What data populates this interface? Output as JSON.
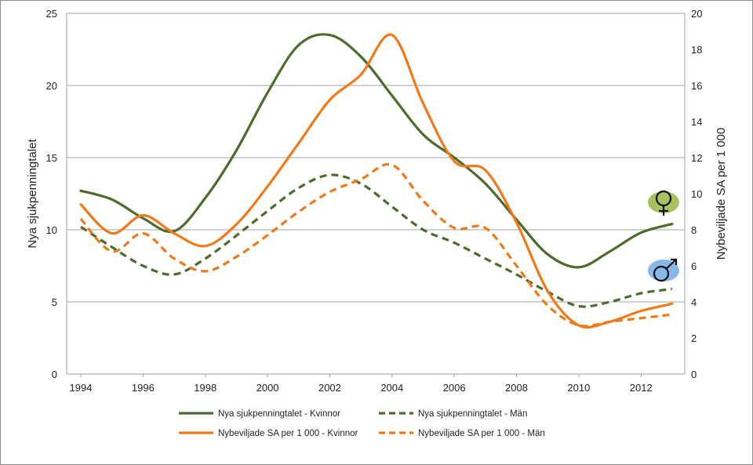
{
  "chart_data": {
    "type": "line",
    "x": [
      1994,
      1995,
      1996,
      1997,
      1998,
      1999,
      2000,
      2001,
      2002,
      2003,
      2004,
      2005,
      2006,
      2007,
      2008,
      2009,
      2010,
      2011,
      2012,
      2013
    ],
    "xticks": [
      "1994",
      "1996",
      "1998",
      "2000",
      "2002",
      "2004",
      "2006",
      "2008",
      "2010",
      "2012"
    ],
    "ylabel_left": "Nya sjukpenningtalet",
    "ylabel_right": "Nybeviljade  SA per 1 000",
    "ylim_left": [
      0,
      25
    ],
    "ylim_right": [
      0,
      20
    ],
    "yticks_left": [
      "0",
      "5",
      "10",
      "15",
      "20",
      "25"
    ],
    "yticks_right": [
      "0",
      "2",
      "4",
      "6",
      "8",
      "10",
      "12",
      "14",
      "16",
      "18",
      "20"
    ],
    "grid": true,
    "legend_position": "bottom",
    "series": [
      {
        "name": "Nya sjukpenningtalet - Kvinnor",
        "axis": "left",
        "color": "#4e6b2c",
        "dashed": false,
        "values": [
          12.7,
          12.1,
          10.8,
          9.9,
          12.2,
          15.5,
          19.5,
          22.8,
          23.5,
          22.0,
          19.3,
          16.6,
          15.0,
          13.2,
          10.7,
          8.3,
          7.4,
          8.5,
          9.8,
          10.4
        ]
      },
      {
        "name": "Nya sjukpenningtalet - Män",
        "axis": "left",
        "color": "#4e6b2c",
        "dashed": true,
        "values": [
          10.2,
          8.8,
          7.5,
          6.9,
          8.0,
          9.6,
          11.3,
          12.9,
          13.8,
          13.2,
          11.6,
          10.0,
          9.1,
          8.0,
          6.9,
          5.7,
          4.7,
          5.0,
          5.6,
          5.9
        ]
      },
      {
        "name": "Nybeviljade SA per 1 000 - Kvinnor",
        "axis": "right",
        "color": "#f0791a",
        "dashed": false,
        "values": [
          9.4,
          7.8,
          8.8,
          7.8,
          7.1,
          8.3,
          10.4,
          12.8,
          15.2,
          16.6,
          18.8,
          15.0,
          11.8,
          11.3,
          8.4,
          4.6,
          2.7,
          2.9,
          3.5,
          3.9
        ]
      },
      {
        "name": "Nybeviljade SA per 1 000 - Män",
        "axis": "right",
        "color": "#f0791a",
        "dashed": true,
        "values": [
          8.6,
          6.8,
          7.8,
          6.4,
          5.7,
          6.5,
          7.7,
          9.0,
          10.1,
          10.8,
          11.6,
          9.6,
          8.1,
          8.1,
          6.0,
          3.8,
          2.7,
          2.9,
          3.1,
          3.3
        ]
      }
    ]
  },
  "icons": {
    "female": "female-symbol-icon",
    "male": "male-symbol-icon",
    "female_bg": "#a8c060",
    "male_bg": "#88b8e8"
  }
}
